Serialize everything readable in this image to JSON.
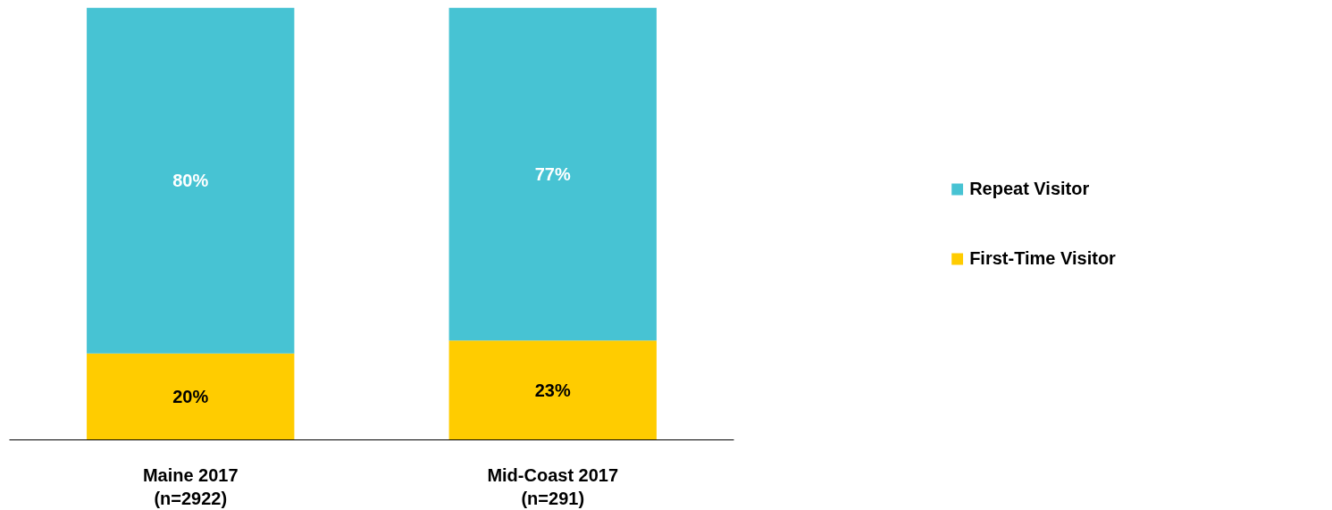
{
  "chart_data": {
    "type": "bar",
    "stacked": true,
    "legend": "right",
    "grid": false,
    "categories": [
      "Maine 2017\n(n=2922)",
      "Mid-Coast 2017\n(n=291)"
    ],
    "series": [
      {
        "name": "First-Time Visitor",
        "color": "#ffcc00",
        "values": [
          20,
          23
        ],
        "value_labels": [
          "20%",
          "23%"
        ]
      },
      {
        "name": "Repeat Visitor",
        "color": "#47c3d3",
        "values": [
          80,
          77
        ],
        "value_labels": [
          "80%",
          "77%"
        ]
      }
    ]
  }
}
